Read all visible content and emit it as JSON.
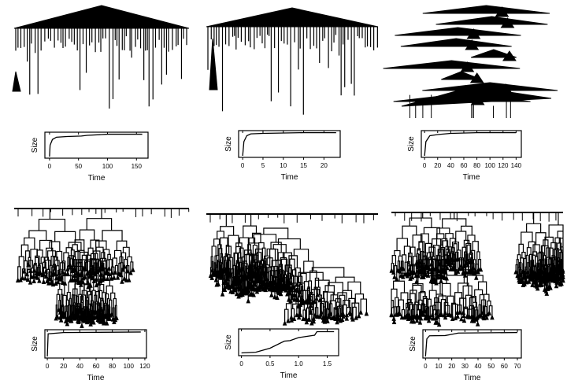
{
  "chart_data": [
    {
      "type": "line",
      "xlabel": "Time",
      "ylabel": "Size",
      "xlim": [
        -8,
        170
      ],
      "ylim": [
        0,
        1
      ],
      "xticks": [
        0,
        50,
        100,
        150
      ],
      "tick_labels": [
        "0",
        "50",
        "100",
        "150"
      ],
      "x": [
        0,
        1,
        5,
        12,
        30,
        55,
        65,
        100,
        160
      ],
      "y": [
        0,
        0.5,
        0.75,
        0.85,
        0.88,
        0.9,
        0.93,
        0.98,
        0.98
      ]
    },
    {
      "type": "line",
      "xlabel": "Time",
      "ylabel": "Size",
      "xlim": [
        -1,
        24
      ],
      "ylim": [
        0,
        1
      ],
      "xticks": [
        0,
        5,
        10,
        15,
        20
      ],
      "tick_labels": [
        "0",
        "5",
        "10",
        "15",
        "20"
      ],
      "x": [
        0,
        0.3,
        1,
        2,
        5,
        15,
        23
      ],
      "y": [
        0,
        0.6,
        0.85,
        0.93,
        0.95,
        0.98,
        0.98
      ]
    },
    {
      "type": "line",
      "xlabel": "Time",
      "ylabel": "Size",
      "xlim": [
        -5,
        148
      ],
      "ylim": [
        0,
        1
      ],
      "xticks": [
        0,
        20,
        40,
        60,
        80,
        100,
        120,
        140
      ],
      "tick_labels": [
        "0",
        "20",
        "40",
        "60",
        "80",
        "100",
        "120",
        "140"
      ],
      "x": [
        0,
        2,
        8,
        20,
        40,
        80,
        140
      ],
      "y": [
        0,
        0.6,
        0.85,
        0.9,
        0.95,
        0.98,
        0.98
      ]
    },
    {
      "type": "line",
      "xlabel": "Time",
      "ylabel": "Size",
      "xlim": [
        -3,
        122
      ],
      "ylim": [
        0,
        1
      ],
      "xticks": [
        0,
        20,
        40,
        60,
        80,
        100,
        120
      ],
      "tick_labels": [
        "0",
        "20",
        "40",
        "60",
        "80",
        "100",
        "120"
      ],
      "x": [
        0,
        1,
        20,
        115
      ],
      "y": [
        0,
        0.9,
        0.95,
        0.97
      ]
    },
    {
      "type": "line",
      "xlabel": "Time",
      "ylabel": "Size",
      "xlim": [
        -0.05,
        1.7
      ],
      "ylim": [
        0,
        1
      ],
      "xticks": [
        0,
        0.5,
        1.0,
        1.5
      ],
      "tick_labels": [
        "0",
        "0.5",
        "1.0",
        "1.5"
      ],
      "x": [
        0,
        0.25,
        0.5,
        0.75,
        0.85,
        1.0,
        1.28,
        1.32,
        1.62
      ],
      "y": [
        0.05,
        0.08,
        0.25,
        0.55,
        0.57,
        0.7,
        0.8,
        0.95,
        0.95
      ]
    },
    {
      "type": "line",
      "xlabel": "Time",
      "ylabel": "Size",
      "xlim": [
        -2,
        73
      ],
      "ylim": [
        0,
        1
      ],
      "xticks": [
        0,
        10,
        20,
        30,
        40,
        50,
        60,
        70
      ],
      "tick_labels": [
        "0",
        "10",
        "20",
        "30",
        "40",
        "50",
        "60",
        "70"
      ],
      "x": [
        0,
        1,
        3,
        15,
        20,
        25,
        70
      ],
      "y": [
        0,
        0.7,
        0.82,
        0.83,
        0.88,
        0.93,
        0.95
      ]
    }
  ]
}
